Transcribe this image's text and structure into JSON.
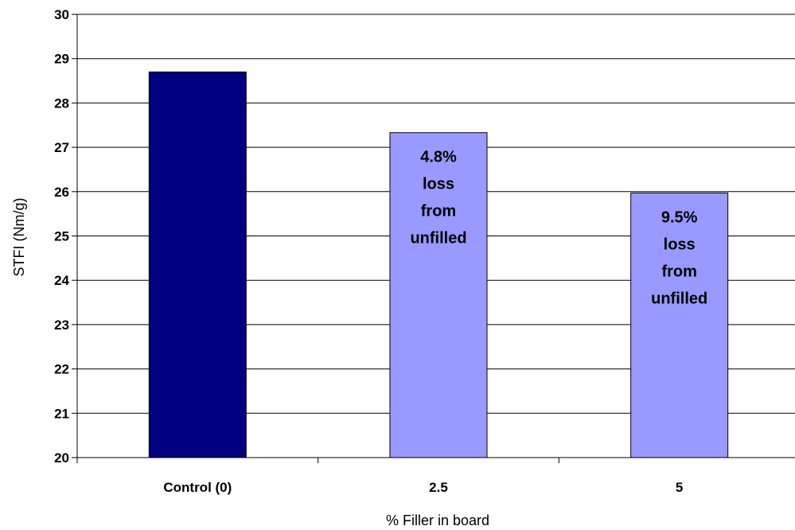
{
  "chart_data": {
    "type": "bar",
    "title": "",
    "xlabel": "% Filler in board",
    "ylabel": "STFI (Nm/g)",
    "ylim": [
      20,
      30
    ],
    "y_ticks": [
      20,
      21,
      22,
      23,
      24,
      25,
      26,
      27,
      28,
      29,
      30
    ],
    "grid": true,
    "legend": "none",
    "categories": [
      "Control (0)",
      "2.5",
      "5"
    ],
    "values": [
      28.7,
      27.33,
      25.97
    ],
    "bar_colors": [
      "#000080",
      "#9999ff",
      "#9999ff"
    ],
    "annotations": [
      {
        "category": "2.5",
        "lines": [
          "4.8%",
          "loss",
          "from",
          "unfilled"
        ]
      },
      {
        "category": "5",
        "lines": [
          "9.5%",
          "loss",
          "from",
          "unfilled"
        ]
      }
    ]
  }
}
